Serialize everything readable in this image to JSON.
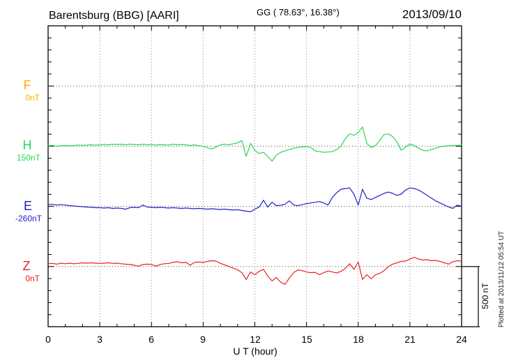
{
  "header": {
    "station": "Barentsburg (BBG)  [AARI]",
    "coords": "GG ( 78.63°,  16.38°)",
    "date": "2013/09/10"
  },
  "xaxis": {
    "label": "U T (hour)",
    "tick_labels": [
      "0",
      "3",
      "6",
      "9",
      "12",
      "15",
      "18",
      "21",
      "24"
    ],
    "range_hours": [
      0,
      24
    ],
    "minor_tick_step_hours": 1,
    "major_tick_step_hours": 3
  },
  "channels": [
    {
      "id": "F",
      "label": "F",
      "baseline_label": "0nT",
      "baseline_nT": 0,
      "color": "#FFAA00"
    },
    {
      "id": "H",
      "label": "H",
      "baseline_label": "150nT",
      "baseline_nT": 150,
      "color": "#27D654"
    },
    {
      "id": "E",
      "label": "E",
      "baseline_label": "-260nT",
      "baseline_nT": -260,
      "color": "#2020CC"
    },
    {
      "id": "Z",
      "label": "Z",
      "baseline_label": "0nT",
      "baseline_nT": 0,
      "color": "#E82020"
    }
  ],
  "scale_bar": {
    "label": "500 nT",
    "nT": 500
  },
  "footer_note": "Plotted at 2013/11/12 05:54 UT",
  "chart_data": {
    "type": "line",
    "title": "Barentsburg (BBG) [AARI] magnetogram 2013/09/10",
    "xlabel": "U T (hour)",
    "ylabel": "nT",
    "x_range": [
      0,
      24
    ],
    "x_step_hours": 0.25,
    "y_division_nT": 100,
    "grid": "dotted vertical gridlines every 3 h; dotted horizontal baseline per channel",
    "legend_position": "left channel labels",
    "series": [
      {
        "name": "F",
        "baseline_nT": 0,
        "note": "no data plotted (baseline only)",
        "values": []
      },
      {
        "name": "H",
        "baseline_nT": 150,
        "values": [
          153,
          156,
          150,
          153,
          156,
          153,
          156,
          159,
          156,
          159,
          161,
          159,
          161,
          164,
          161,
          167,
          164,
          167,
          161,
          167,
          164,
          161,
          167,
          161,
          164,
          159,
          164,
          161,
          159,
          167,
          161,
          164,
          161,
          156,
          161,
          153,
          150,
          136,
          127,
          144,
          161,
          167,
          161,
          170,
          178,
          195,
          65,
          173,
          116,
          88,
          99,
          65,
          25,
          76,
          99,
          111,
          122,
          133,
          139,
          144,
          147,
          139,
          111,
          105,
          99,
          102,
          105,
          122,
          150,
          212,
          252,
          241,
          264,
          309,
          173,
          139,
          156,
          195,
          247,
          252,
          230,
          184,
          116,
          144,
          167,
          156,
          133,
          116,
          111,
          122,
          133,
          144,
          150,
          153,
          156,
          156,
          159
        ]
      },
      {
        "name": "E",
        "baseline_nT": -260,
        "values": [
          -246,
          -243,
          -249,
          -246,
          -249,
          -254,
          -257,
          -260,
          -263,
          -266,
          -268,
          -271,
          -271,
          -274,
          -271,
          -277,
          -274,
          -277,
          -283,
          -271,
          -268,
          -271,
          -249,
          -266,
          -268,
          -271,
          -268,
          -271,
          -274,
          -271,
          -274,
          -277,
          -274,
          -277,
          -280,
          -277,
          -280,
          -283,
          -280,
          -283,
          -286,
          -283,
          -288,
          -291,
          -288,
          -294,
          -300,
          -305,
          -283,
          -266,
          -209,
          -266,
          -226,
          -254,
          -251,
          -243,
          -215,
          -249,
          -254,
          -246,
          -237,
          -232,
          -226,
          -220,
          -232,
          -249,
          -186,
          -146,
          -118,
          -112,
          -107,
          -158,
          -249,
          -118,
          -192,
          -203,
          -186,
          -169,
          -152,
          -141,
          -152,
          -169,
          -158,
          -124,
          -107,
          -112,
          -124,
          -146,
          -169,
          -192,
          -215,
          -232,
          -249,
          -266,
          -277,
          -249,
          -260
        ]
      },
      {
        "name": "Z",
        "baseline_nT": 0,
        "values": [
          23,
          26,
          20,
          28,
          23,
          28,
          23,
          26,
          31,
          28,
          31,
          28,
          26,
          28,
          31,
          26,
          28,
          23,
          20,
          17,
          11,
          3,
          17,
          20,
          17,
          3,
          17,
          23,
          26,
          34,
          40,
          31,
          34,
          11,
          34,
          37,
          34,
          43,
          48,
          45,
          26,
          14,
          0,
          -14,
          -28,
          -51,
          -108,
          -45,
          -68,
          -40,
          -23,
          -80,
          -119,
          -91,
          -131,
          -148,
          -97,
          -51,
          -28,
          -34,
          -45,
          -51,
          -48,
          -68,
          -51,
          -37,
          -45,
          -54,
          -40,
          -17,
          23,
          -23,
          37,
          -108,
          -68,
          -102,
          -68,
          -57,
          -34,
          0,
          20,
          31,
          43,
          45,
          62,
          77,
          62,
          54,
          57,
          48,
          51,
          43,
          31,
          20,
          40,
          48,
          45
        ]
      }
    ]
  }
}
